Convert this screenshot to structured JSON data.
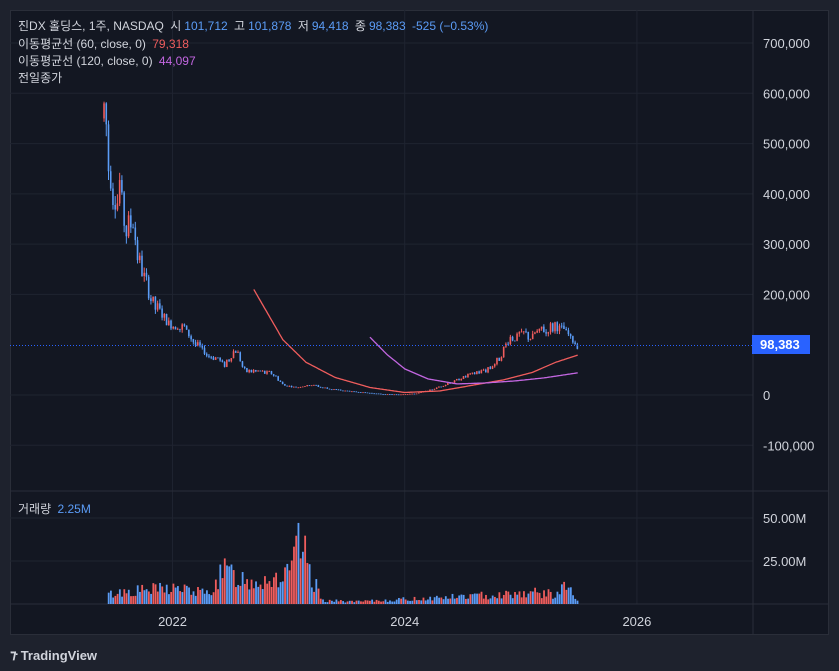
{
  "header": {
    "symbol": "진DX 홀딩스, 1주, NASDAQ",
    "open_label": "시",
    "open": "101,712",
    "high_label": "고",
    "high": "101,878",
    "low_label": "저",
    "low": "94,418",
    "close_label": "종",
    "close": "98,383",
    "change": "-525 (−0.53%)"
  },
  "indicators": [
    {
      "label": "이동평균선 (60, close, 0)",
      "value": "79,318",
      "color": "#f05d5d"
    },
    {
      "label": "이동평균선 (120, close, 0)",
      "value": "44,097",
      "color": "#c266e0"
    },
    {
      "label": "전일종가",
      "value": "",
      "color": "#d1d4dc"
    }
  ],
  "volume_pane": {
    "label": "거래량",
    "value": "2.25M"
  },
  "price_tag": "98,383",
  "footer": {
    "brand": "TradingView"
  },
  "colors": {
    "up": "#f05d5d",
    "down": "#5b9cf6",
    "ma60": "#f05d5d",
    "ma120": "#c266e0",
    "accent": "#2962ff"
  },
  "chart_data": {
    "type": "candlestick",
    "price_axis": {
      "ticks": [
        700000,
        600000,
        500000,
        400000,
        300000,
        200000,
        0,
        -100000
      ],
      "tick_labels": [
        "700,000",
        "600,000",
        "500,000",
        "400,000",
        "300,000",
        "200,000",
        "0",
        "-100,000"
      ],
      "ylim": [
        -150000,
        760000
      ]
    },
    "volume_axis": {
      "ticks": [
        50000000,
        25000000
      ],
      "tick_labels": [
        "50.00M",
        "25.00M"
      ],
      "ylim": [
        0,
        58000000
      ]
    },
    "x_axis": {
      "ticks": [
        2022,
        2024,
        2026
      ],
      "tick_labels": [
        "2022",
        "2024",
        "2026"
      ],
      "xlim": [
        2020.6,
        2027.0
      ]
    },
    "price_series": [
      {
        "x": 2021.41,
        "y": 550000
      },
      {
        "x": 2021.45,
        "y": 470000
      },
      {
        "x": 2021.5,
        "y": 380000
      },
      {
        "x": 2021.55,
        "y": 410000
      },
      {
        "x": 2021.6,
        "y": 330000
      },
      {
        "x": 2021.65,
        "y": 360000
      },
      {
        "x": 2021.72,
        "y": 260000
      },
      {
        "x": 2021.8,
        "y": 200000
      },
      {
        "x": 2021.88,
        "y": 170000
      },
      {
        "x": 2021.96,
        "y": 140000
      },
      {
        "x": 2022.05,
        "y": 140000
      },
      {
        "x": 2022.15,
        "y": 120000
      },
      {
        "x": 2022.25,
        "y": 90000
      },
      {
        "x": 2022.35,
        "y": 75000
      },
      {
        "x": 2022.45,
        "y": 60000
      },
      {
        "x": 2022.55,
        "y": 90000
      },
      {
        "x": 2022.62,
        "y": 50000
      },
      {
        "x": 2022.72,
        "y": 45000
      },
      {
        "x": 2022.85,
        "y": 45000
      },
      {
        "x": 2022.95,
        "y": 20000
      },
      {
        "x": 2023.05,
        "y": 15000
      },
      {
        "x": 2023.2,
        "y": 20000
      },
      {
        "x": 2023.35,
        "y": 12000
      },
      {
        "x": 2023.5,
        "y": 8000
      },
      {
        "x": 2023.65,
        "y": 5000
      },
      {
        "x": 2023.8,
        "y": 2000
      },
      {
        "x": 2023.95,
        "y": 1000
      },
      {
        "x": 2024.1,
        "y": 3000
      },
      {
        "x": 2024.25,
        "y": 12000
      },
      {
        "x": 2024.4,
        "y": 25000
      },
      {
        "x": 2024.55,
        "y": 40000
      },
      {
        "x": 2024.7,
        "y": 48000
      },
      {
        "x": 2024.82,
        "y": 75000
      },
      {
        "x": 2024.9,
        "y": 110000
      },
      {
        "x": 2025.0,
        "y": 120000
      },
      {
        "x": 2025.1,
        "y": 115000
      },
      {
        "x": 2025.2,
        "y": 130000
      },
      {
        "x": 2025.3,
        "y": 135000
      },
      {
        "x": 2025.38,
        "y": 125000
      },
      {
        "x": 2025.44,
        "y": 110000
      },
      {
        "x": 2025.49,
        "y": 98383
      }
    ],
    "ma60": [
      {
        "x": 2022.7,
        "y": 210000
      },
      {
        "x": 2022.8,
        "y": 170000
      },
      {
        "x": 2022.95,
        "y": 110000
      },
      {
        "x": 2023.15,
        "y": 65000
      },
      {
        "x": 2023.4,
        "y": 35000
      },
      {
        "x": 2023.7,
        "y": 15000
      },
      {
        "x": 2024.0,
        "y": 5000
      },
      {
        "x": 2024.3,
        "y": 8000
      },
      {
        "x": 2024.6,
        "y": 20000
      },
      {
        "x": 2024.85,
        "y": 30000
      },
      {
        "x": 2025.1,
        "y": 45000
      },
      {
        "x": 2025.3,
        "y": 65000
      },
      {
        "x": 2025.49,
        "y": 79318
      }
    ],
    "ma120": [
      {
        "x": 2023.7,
        "y": 115000
      },
      {
        "x": 2023.85,
        "y": 80000
      },
      {
        "x": 2024.0,
        "y": 52000
      },
      {
        "x": 2024.2,
        "y": 32000
      },
      {
        "x": 2024.45,
        "y": 22000
      },
      {
        "x": 2024.7,
        "y": 24000
      },
      {
        "x": 2024.95,
        "y": 28000
      },
      {
        "x": 2025.2,
        "y": 34000
      },
      {
        "x": 2025.49,
        "y": 44097
      }
    ],
    "last_close": 98383,
    "volume_envelope": [
      {
        "x": 2021.45,
        "y": 8000000
      },
      {
        "x": 2021.6,
        "y": 11000000
      },
      {
        "x": 2021.8,
        "y": 12000000
      },
      {
        "x": 2022.0,
        "y": 14000000
      },
      {
        "x": 2022.3,
        "y": 9000000
      },
      {
        "x": 2022.45,
        "y": 28000000
      },
      {
        "x": 2022.65,
        "y": 20000000
      },
      {
        "x": 2022.85,
        "y": 22000000
      },
      {
        "x": 2023.0,
        "y": 24000000
      },
      {
        "x": 2023.1,
        "y": 53000000
      },
      {
        "x": 2023.2,
        "y": 22000000
      },
      {
        "x": 2023.3,
        "y": 3000000
      },
      {
        "x": 2023.6,
        "y": 2000000
      },
      {
        "x": 2024.0,
        "y": 4000000
      },
      {
        "x": 2024.4,
        "y": 6000000
      },
      {
        "x": 2024.8,
        "y": 8000000
      },
      {
        "x": 2025.1,
        "y": 10000000
      },
      {
        "x": 2025.3,
        "y": 8000000
      },
      {
        "x": 2025.4,
        "y": 16000000
      },
      {
        "x": 2025.49,
        "y": 2250000
      }
    ]
  }
}
